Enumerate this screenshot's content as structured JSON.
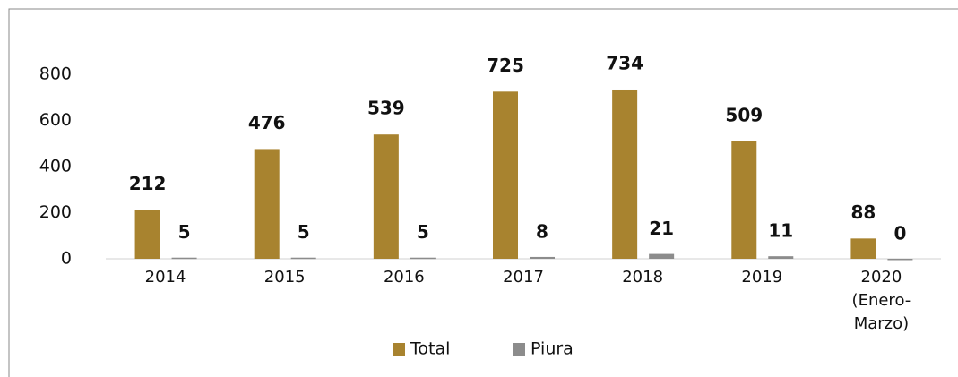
{
  "chart_data": {
    "type": "bar",
    "categories": [
      "2014",
      "2015",
      "2016",
      "2017",
      "2018",
      "2019",
      "2020 (Enero-Marzo)"
    ],
    "series": [
      {
        "name": "Total",
        "color": "#a8832f",
        "values": [
          212,
          476,
          539,
          725,
          734,
          509,
          88
        ]
      },
      {
        "name": "Piura",
        "color": "#8c8c8c",
        "values": [
          5,
          5,
          5,
          8,
          21,
          11,
          0
        ]
      }
    ],
    "ylim": [
      0,
      800
    ],
    "yticks": [
      0,
      200,
      400,
      600,
      800
    ],
    "grid": false,
    "legend": "bottom"
  }
}
